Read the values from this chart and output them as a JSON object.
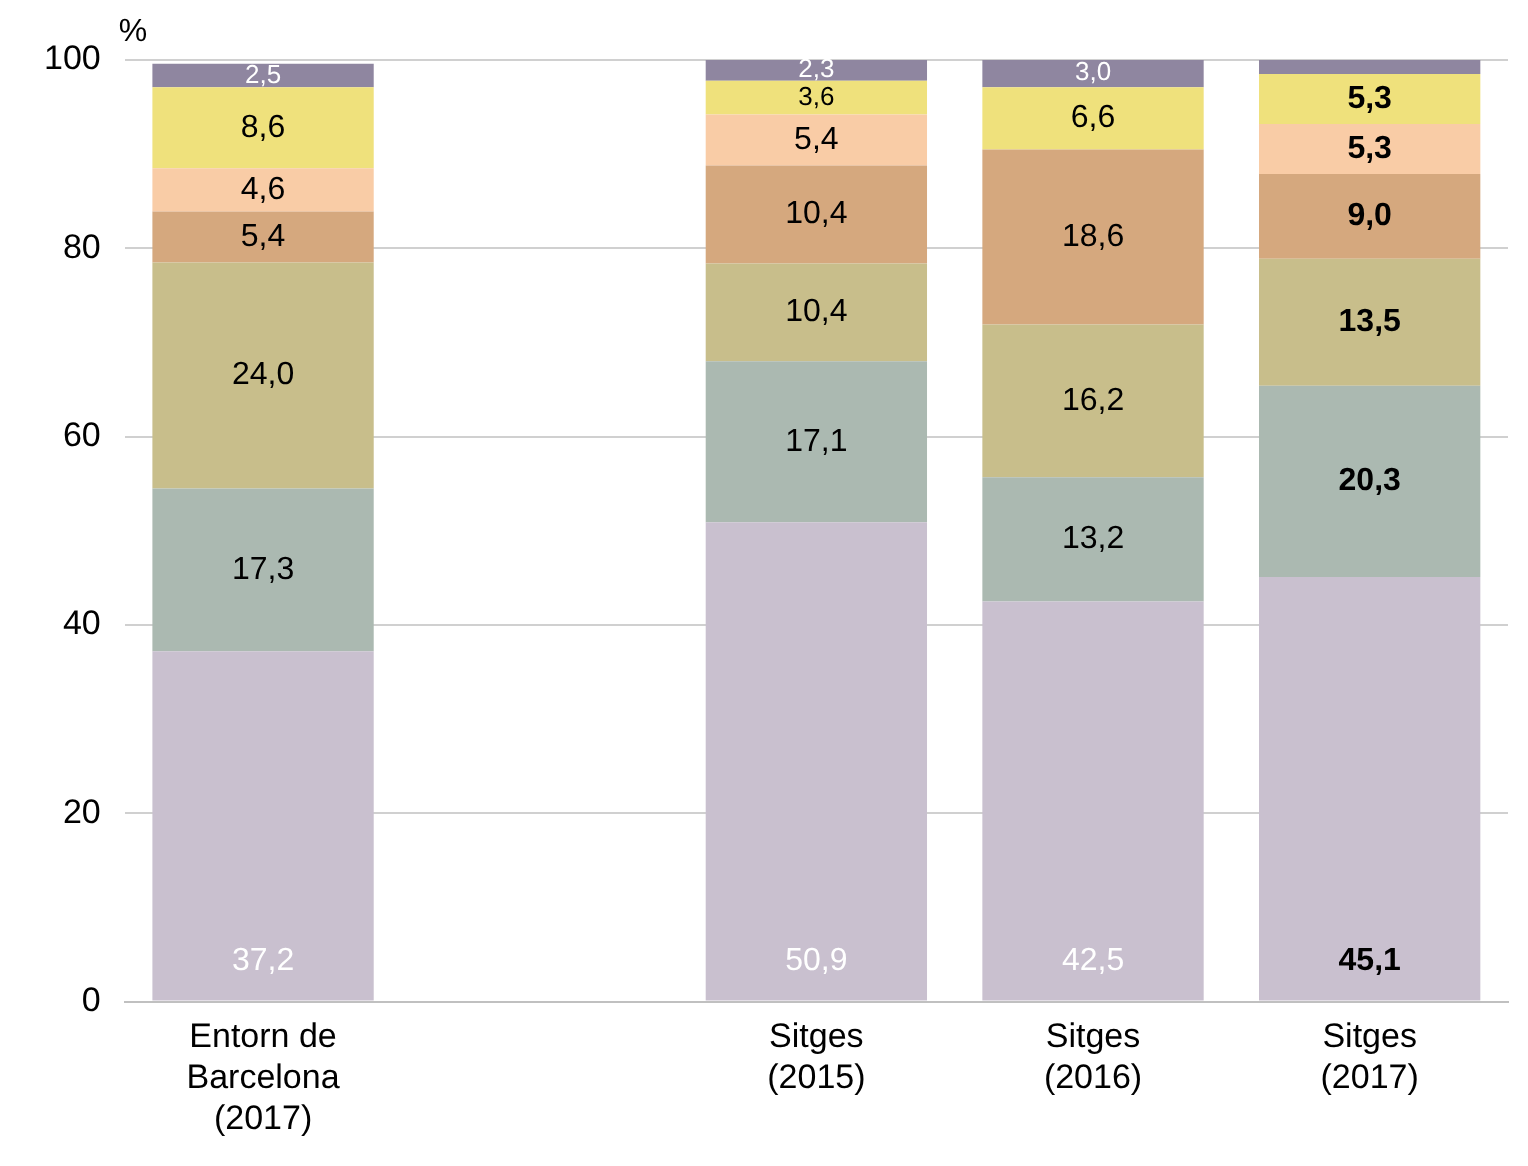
{
  "chart_data": {
    "type": "bar",
    "stacked": true,
    "ylabel": "%",
    "categories": [
      "Entorn de Barcelona (2017)",
      null,
      "Sitges (2015)",
      "Sitges (2016)",
      "Sitges (2017)"
    ],
    "series": [
      {
        "color": "#c9c0cf",
        "values": [
          37.2,
          null,
          50.9,
          42.5,
          45.1
        ],
        "value_labels": [
          "37,2",
          null,
          "50,9",
          "42,5",
          "45,1"
        ]
      },
      {
        "color": "#abb9b1",
        "values": [
          17.3,
          null,
          17.1,
          13.2,
          20.3
        ],
        "value_labels": [
          "17,3",
          null,
          "17,1",
          "13,2",
          "20,3"
        ]
      },
      {
        "color": "#c8be8b",
        "values": [
          24.0,
          null,
          10.4,
          16.2,
          13.5
        ],
        "value_labels": [
          "24,0",
          null,
          "10,4",
          "16,2",
          "13,5"
        ]
      },
      {
        "color": "#d5a87e",
        "values": [
          5.4,
          null,
          10.4,
          18.6,
          9.0
        ],
        "value_labels": [
          "5,4",
          null,
          "10,4",
          "18,6",
          "9,0"
        ]
      },
      {
        "color": "#f9cca6",
        "values": [
          4.6,
          null,
          5.4,
          null,
          5.3
        ],
        "value_labels": [
          "4,6",
          null,
          "5,4",
          null,
          "5,3"
        ]
      },
      {
        "color": "#efe17c",
        "values": [
          8.6,
          null,
          3.6,
          6.6,
          5.3
        ],
        "value_labels": [
          "8,6",
          null,
          "3,6",
          "6,6",
          "5,3"
        ]
      },
      {
        "color": "#8f86a0",
        "values": [
          2.5,
          null,
          2.3,
          3.0,
          1.5
        ],
        "value_labels": [
          "2,5",
          null,
          "2,3",
          "3,0",
          null
        ]
      }
    ],
    "ylim": [
      0,
      100
    ],
    "yticks": [
      0,
      20,
      40,
      60,
      80,
      100
    ],
    "grid": "y",
    "legend": false
  }
}
